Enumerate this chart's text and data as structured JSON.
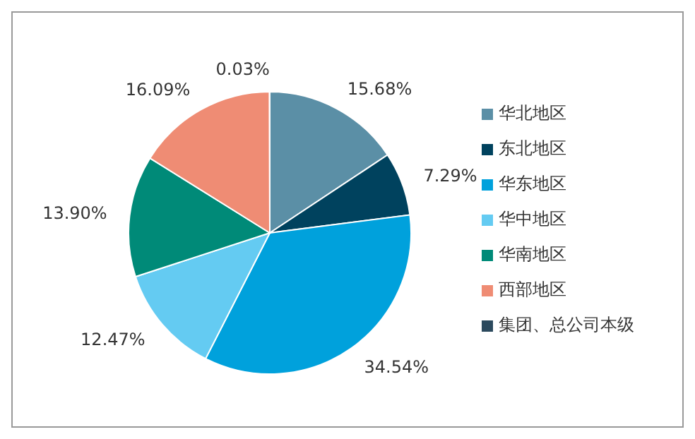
{
  "chart_data": {
    "type": "pie",
    "categories": [
      "华北地区",
      "东北地区",
      "华东地区",
      "华中地区",
      "华南地区",
      "西部地区",
      "集团、总公司本级"
    ],
    "values": [
      15.68,
      7.29,
      34.54,
      12.47,
      13.9,
      16.09,
      0.03
    ],
    "value_labels": [
      "15.68%",
      "7.29%",
      "34.54%",
      "12.47%",
      "13.90%",
      "16.09%",
      "0.03%"
    ],
    "colors": [
      "#5b8fa6",
      "#00425e",
      "#00a1dc",
      "#64cbf2",
      "#008a78",
      "#ef8c74",
      "#2c4a5e"
    ],
    "legend": "right"
  }
}
